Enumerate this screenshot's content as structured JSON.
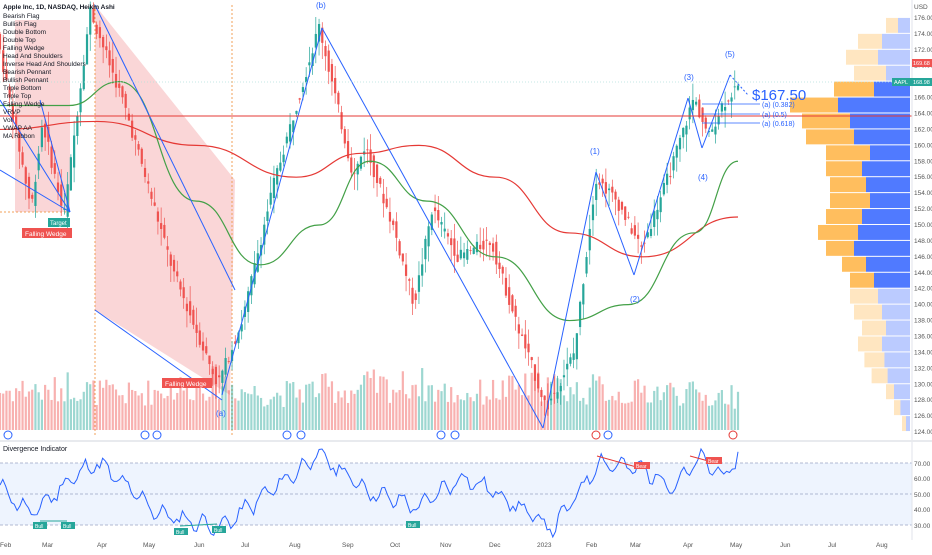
{
  "header": {
    "title": "Apple Inc, 1D, NASDAQ, Heikin Ashi",
    "indicators": [
      "Bearish Flag",
      "Bullish Flag",
      "Double Bottom",
      "Double Top",
      "Falling Wedge",
      "Head And Shoulders",
      "Inverse Head And Shoulders",
      "Bearish Pennant",
      "Bullish Pennant",
      "Triple Bottom",
      "Triple Top",
      "Falling Wedge",
      "VRVP",
      "Vol",
      "VWAP AA",
      "MA Ribbon"
    ]
  },
  "price_axis": {
    "currency": "USD",
    "ticks": [
      "176.00",
      "174.00",
      "172.00",
      "170.00",
      "168.00",
      "166.00",
      "164.00",
      "162.00",
      "160.00",
      "158.00",
      "156.00",
      "154.00",
      "152.00",
      "150.00",
      "148.00",
      "146.00",
      "144.00",
      "142.00",
      "140.00",
      "138.00",
      "136.00",
      "134.00",
      "132.00",
      "130.00",
      "128.00",
      "126.00",
      "124.00"
    ],
    "last_price_tag": "169.68",
    "symbol_tag": "AAPL",
    "symbol_price": "168.98",
    "big_price": "$167.50"
  },
  "time_axis": {
    "ticks": [
      "Feb",
      "Mar",
      "Apr",
      "May",
      "Jun",
      "Jul",
      "Aug",
      "Sep",
      "Oct",
      "Nov",
      "Dec",
      "2023",
      "Feb",
      "Mar",
      "Apr",
      "May",
      "Jun",
      "Jul",
      "Aug"
    ]
  },
  "annotations": {
    "waves": [
      "(b)",
      "(a)",
      "(1)",
      "(2)",
      "(3)",
      "(4)",
      "(5)"
    ],
    "fib_levels": [
      "(a) (0.382)",
      "(a) (0.5)",
      "(a) (0.618)"
    ],
    "falling_wedge_label": "Falling Wedge",
    "small_tag": "Target"
  },
  "oscillator": {
    "title": "Divergence Indicator",
    "ticks": [
      "70.00",
      "60.00",
      "50.00",
      "40.00",
      "30.00"
    ],
    "bull_tag": "Bull",
    "bear_tag": "Bear"
  },
  "colors": {
    "up": "#26a69a",
    "down": "#ef5350",
    "wedge": "#2962ff",
    "ma_red": "#e53935",
    "ma_green": "#43a047",
    "vrvp_blue": "#3d6bff",
    "vrvp_orange": "#ffb74d",
    "osc_line": "#2962ff"
  },
  "chart_data": {
    "type": "candlestick",
    "symbol": "AAPL",
    "interval": "1D",
    "chart_style": "Heikin Ashi",
    "ylim": [
      123,
      178
    ],
    "price_path": {
      "dates": [
        "2022-02-01",
        "2022-02-22",
        "2022-03-01",
        "2022-03-14",
        "2022-03-30",
        "2022-04-20",
        "2022-05-20",
        "2022-06-16",
        "2022-07-01",
        "2022-07-20",
        "2022-08-17",
        "2022-09-07",
        "2022-09-14",
        "2022-10-01",
        "2022-10-14",
        "2022-10-25",
        "2022-11-10",
        "2022-11-30",
        "2022-12-15",
        "2023-01-03",
        "2023-01-20",
        "2023-02-02",
        "2023-02-15",
        "2023-03-02",
        "2023-03-20",
        "2023-04-03",
        "2023-04-12",
        "2023-04-20",
        "2023-04-28"
      ],
      "values": [
        174,
        152,
        163,
        151,
        177,
        165,
        144,
        130,
        138,
        155,
        175,
        156,
        160,
        150,
        140,
        152,
        146,
        148,
        138,
        127,
        134,
        156,
        153,
        147,
        157,
        166,
        161,
        165,
        167
      ]
    },
    "volume_rel": [
      0.6,
      0.7,
      0.5,
      0.8,
      0.6,
      0.5,
      0.7,
      0.9,
      0.6,
      0.5,
      0.7,
      0.6,
      0.8,
      0.7,
      0.9,
      0.6,
      0.5,
      0.6,
      0.7,
      0.8,
      0.6,
      0.7,
      0.5,
      0.6,
      0.6,
      0.5,
      0.4,
      0.5,
      0.4
    ],
    "ma_red": {
      "dates": [
        "2022-02-01",
        "2022-04-01",
        "2022-06-01",
        "2022-08-01",
        "2022-09-10",
        "2022-10-15",
        "2022-12-01",
        "2023-01-15",
        "2023-03-01",
        "2023-04-28"
      ],
      "values": [
        162,
        163,
        160,
        156,
        159,
        160,
        156,
        149,
        146,
        151
      ]
    },
    "ma_green": {
      "dates": [
        "2022-02-01",
        "2022-03-15",
        "2022-04-15",
        "2022-06-01",
        "2022-07-10",
        "2022-08-15",
        "2022-09-15",
        "2022-10-20",
        "2022-12-01",
        "2023-01-15",
        "2023-02-20",
        "2023-04-01",
        "2023-04-28"
      ],
      "values": [
        165,
        165,
        168,
        153,
        145,
        150,
        158,
        153,
        146,
        138,
        140,
        149,
        158
      ]
    },
    "vrvp": {
      "price_bins": [
        125,
        127,
        129,
        131,
        133,
        135,
        137,
        139,
        141,
        143,
        145,
        147,
        149,
        151,
        153,
        155,
        157,
        159,
        161,
        163,
        165,
        167,
        169,
        171,
        173,
        175
      ],
      "buy": [
        0.05,
        0.12,
        0.2,
        0.28,
        0.32,
        0.35,
        0.3,
        0.35,
        0.4,
        0.45,
        0.55,
        0.7,
        0.65,
        0.6,
        0.5,
        0.55,
        0.6,
        0.5,
        0.7,
        0.75,
        0.9,
        0.45,
        0.3,
        0.4,
        0.35,
        0.15
      ],
      "sell": [
        0.05,
        0.08,
        0.1,
        0.2,
        0.25,
        0.3,
        0.3,
        0.35,
        0.35,
        0.3,
        0.3,
        0.35,
        0.5,
        0.45,
        0.5,
        0.45,
        0.45,
        0.55,
        0.6,
        0.6,
        0.6,
        0.5,
        0.4,
        0.4,
        0.3,
        0.15
      ]
    },
    "oscillator_series": {
      "dates": [
        "2022-02-01",
        "2022-02-20",
        "2022-03-15",
        "2022-04-01",
        "2022-05-10",
        "2022-06-16",
        "2022-08-15",
        "2022-09-15",
        "2022-10-15",
        "2022-11-10",
        "2022-12-01",
        "2023-01-05",
        "2023-02-02",
        "2023-03-01",
        "2023-03-20",
        "2023-04-05",
        "2023-04-20",
        "2023-04-28"
      ],
      "values": [
        55,
        40,
        58,
        68,
        40,
        33,
        72,
        52,
        44,
        60,
        52,
        32,
        68,
        64,
        55,
        70,
        60,
        70
      ]
    },
    "osc_ylim": [
      28,
      75
    ]
  }
}
